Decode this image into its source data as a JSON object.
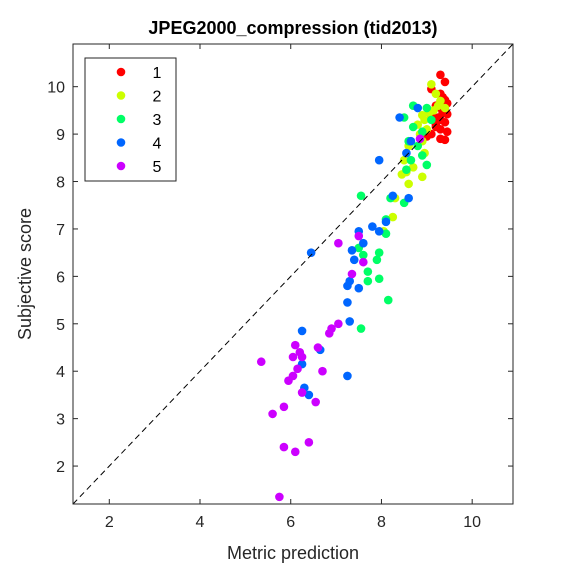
{
  "chart_data": {
    "type": "scatter",
    "title": "JPEG2000_compression (tid2013)",
    "xlabel": "Metric prediction",
    "ylabel": "Subjective score",
    "xlim": [
      1.2,
      10.9
    ],
    "ylim": [
      1.2,
      10.9
    ],
    "xticks": [
      2,
      4,
      6,
      8,
      10
    ],
    "yticks": [
      2,
      3,
      4,
      5,
      6,
      7,
      8,
      9,
      10
    ],
    "grid": false,
    "reference_line": "y = x (dashed)",
    "legend_position": "top-left",
    "series": [
      {
        "name": "1",
        "color": "#ff0000",
        "points": [
          [
            9.3,
            10.25
          ],
          [
            9.4,
            10.1
          ],
          [
            9.1,
            9.95
          ],
          [
            9.3,
            9.85
          ],
          [
            9.35,
            9.78
          ],
          [
            9.4,
            9.72
          ],
          [
            9.45,
            9.65
          ],
          [
            9.2,
            9.6
          ],
          [
            9.3,
            9.55
          ],
          [
            9.4,
            9.5
          ],
          [
            9.35,
            9.45
          ],
          [
            9.45,
            9.42
          ],
          [
            9.1,
            9.4
          ],
          [
            9.25,
            9.35
          ],
          [
            9.3,
            9.3
          ],
          [
            9.4,
            9.25
          ],
          [
            9.2,
            9.15
          ],
          [
            9.3,
            9.1
          ],
          [
            9.45,
            9.05
          ],
          [
            9.1,
            9.0
          ],
          [
            9.0,
            8.95
          ],
          [
            9.3,
            8.9
          ],
          [
            9.4,
            8.88
          ],
          [
            9.2,
            9.2
          ]
        ]
      },
      {
        "name": "2",
        "color": "#ccff00",
        "points": [
          [
            9.1,
            10.05
          ],
          [
            9.2,
            9.85
          ],
          [
            9.3,
            9.7
          ],
          [
            9.25,
            9.6
          ],
          [
            9.4,
            9.55
          ],
          [
            9.15,
            9.5
          ],
          [
            9.05,
            9.45
          ],
          [
            8.9,
            9.4
          ],
          [
            8.95,
            9.3
          ],
          [
            8.8,
            9.2
          ],
          [
            9.0,
            9.1
          ],
          [
            8.85,
            9.0
          ],
          [
            8.9,
            8.85
          ],
          [
            8.95,
            8.6
          ],
          [
            8.6,
            8.75
          ],
          [
            8.5,
            8.45
          ],
          [
            8.7,
            8.3
          ],
          [
            8.55,
            8.2
          ],
          [
            8.45,
            8.15
          ],
          [
            8.9,
            8.1
          ],
          [
            8.6,
            7.95
          ],
          [
            8.3,
            7.65
          ],
          [
            8.25,
            7.25
          ],
          [
            8.05,
            6.95
          ]
        ]
      },
      {
        "name": "3",
        "color": "#00ff66",
        "points": [
          [
            8.7,
            9.6
          ],
          [
            9.0,
            9.55
          ],
          [
            8.5,
            9.35
          ],
          [
            9.1,
            9.3
          ],
          [
            8.7,
            9.15
          ],
          [
            8.9,
            9.05
          ],
          [
            8.6,
            8.85
          ],
          [
            8.8,
            8.75
          ],
          [
            8.9,
            8.55
          ],
          [
            9.0,
            8.35
          ],
          [
            8.65,
            8.45
          ],
          [
            8.55,
            8.25
          ],
          [
            7.55,
            7.7
          ],
          [
            8.2,
            7.65
          ],
          [
            8.5,
            7.55
          ],
          [
            8.1,
            7.2
          ],
          [
            8.1,
            6.9
          ],
          [
            7.5,
            6.6
          ],
          [
            7.6,
            6.45
          ],
          [
            7.95,
            6.5
          ],
          [
            7.9,
            6.35
          ],
          [
            7.7,
            6.1
          ],
          [
            7.95,
            5.95
          ],
          [
            7.7,
            5.9
          ],
          [
            8.15,
            5.5
          ],
          [
            7.55,
            4.9
          ]
        ]
      },
      {
        "name": "4",
        "color": "#0066ff",
        "points": [
          [
            8.4,
            9.35
          ],
          [
            8.8,
            9.55
          ],
          [
            8.65,
            8.85
          ],
          [
            8.55,
            8.6
          ],
          [
            7.95,
            8.45
          ],
          [
            8.25,
            7.7
          ],
          [
            8.6,
            7.65
          ],
          [
            8.1,
            7.15
          ],
          [
            7.8,
            7.05
          ],
          [
            7.95,
            6.95
          ],
          [
            7.5,
            6.95
          ],
          [
            7.35,
            6.55
          ],
          [
            7.6,
            6.7
          ],
          [
            6.45,
            6.5
          ],
          [
            7.4,
            6.35
          ],
          [
            7.3,
            5.9
          ],
          [
            7.25,
            5.8
          ],
          [
            7.5,
            5.75
          ],
          [
            7.25,
            5.45
          ],
          [
            6.25,
            4.85
          ],
          [
            6.65,
            4.45
          ],
          [
            6.25,
            4.15
          ],
          [
            7.3,
            5.05
          ],
          [
            6.3,
            3.65
          ],
          [
            6.4,
            3.5
          ],
          [
            7.25,
            3.9
          ]
        ]
      },
      {
        "name": "5",
        "color": "#cc00ff",
        "points": [
          [
            8.85,
            8.9
          ],
          [
            7.5,
            6.85
          ],
          [
            7.05,
            6.7
          ],
          [
            7.35,
            6.05
          ],
          [
            7.6,
            6.3
          ],
          [
            7.05,
            5.0
          ],
          [
            6.9,
            4.9
          ],
          [
            6.85,
            4.8
          ],
          [
            6.1,
            4.55
          ],
          [
            6.2,
            4.4
          ],
          [
            6.05,
            4.3
          ],
          [
            6.6,
            4.5
          ],
          [
            6.25,
            4.3
          ],
          [
            5.35,
            4.2
          ],
          [
            6.15,
            4.05
          ],
          [
            6.7,
            4.0
          ],
          [
            6.05,
            3.9
          ],
          [
            5.95,
            3.8
          ],
          [
            6.25,
            3.55
          ],
          [
            6.55,
            3.35
          ],
          [
            5.85,
            3.25
          ],
          [
            5.6,
            3.1
          ],
          [
            6.4,
            2.5
          ],
          [
            5.85,
            2.4
          ],
          [
            6.1,
            2.3
          ],
          [
            5.75,
            1.35
          ]
        ]
      }
    ]
  }
}
